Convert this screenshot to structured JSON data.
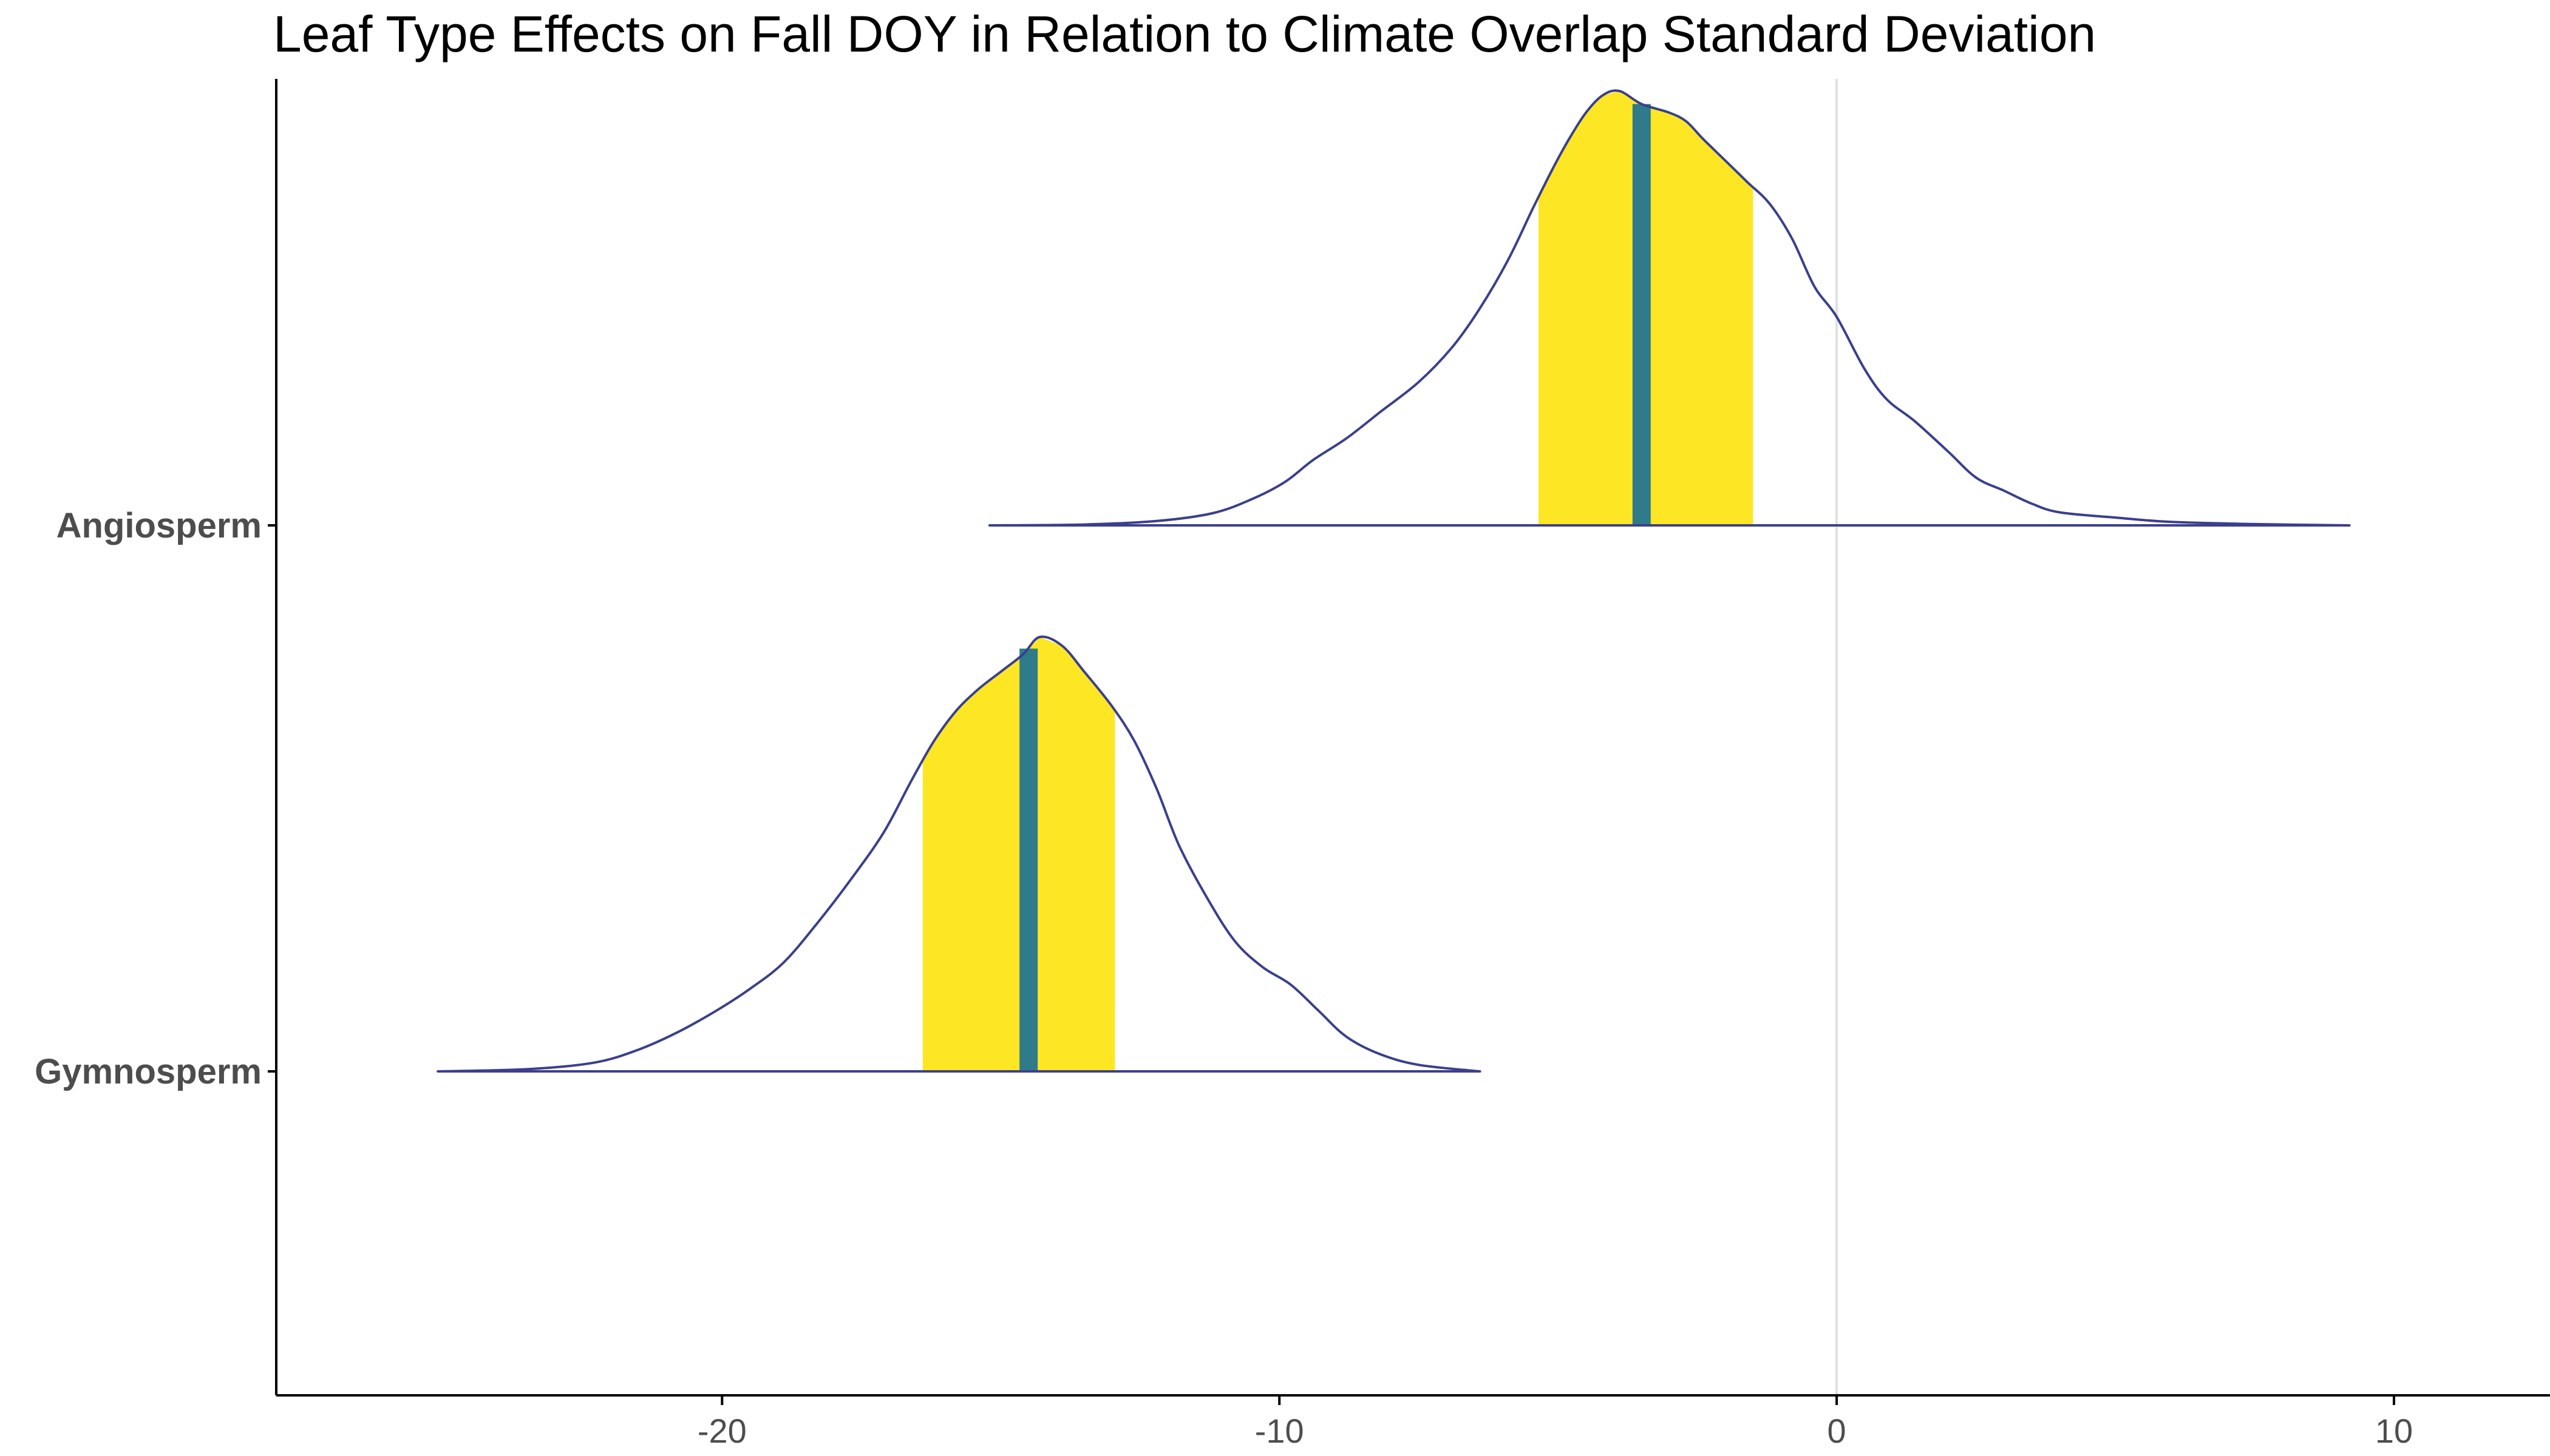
{
  "chart_data": {
    "type": "ridgeline",
    "title": "Leaf Type Effects on Fall DOY in Relation to Climate Overlap Standard Deviation",
    "xlabel": "",
    "ylabel": "",
    "xlim": [
      -28,
      12.8
    ],
    "x_ticks": [
      -20,
      -10,
      0,
      10
    ],
    "x_tick_labels": [
      "-20",
      "-10",
      "0",
      "10"
    ],
    "reference_line_x": 0,
    "grid": false,
    "categories": [
      "Angiosperm",
      "Gymnosperm"
    ],
    "series": [
      {
        "name": "Angiosperm",
        "median": -3.5,
        "interval": [
          -5.35,
          -1.5
        ],
        "density_x": [
          -15.2,
          -13.5,
          -12.2,
          -11.2,
          -10.5,
          -9.9,
          -9.4,
          -8.8,
          -8.2,
          -7.5,
          -6.9,
          -6.4,
          -5.9,
          -5.45,
          -5.1,
          -4.8,
          -4.5,
          -4.2,
          -3.9,
          -3.5,
          -3.0,
          -2.7,
          -2.4,
          -2.0,
          -1.6,
          -1.2,
          -0.8,
          -0.4,
          0,
          0.5,
          0.9,
          1.4,
          2.0,
          2.5,
          3.0,
          3.5,
          4.0,
          5.0,
          6.0,
          7.5,
          9.2
        ],
        "density_y": [
          0.0,
          0.002,
          0.01,
          0.028,
          0.06,
          0.1,
          0.15,
          0.2,
          0.26,
          0.33,
          0.41,
          0.5,
          0.61,
          0.73,
          0.82,
          0.89,
          0.95,
          0.99,
          1.0,
          0.97,
          0.95,
          0.93,
          0.89,
          0.84,
          0.79,
          0.74,
          0.66,
          0.55,
          0.48,
          0.36,
          0.29,
          0.24,
          0.17,
          0.11,
          0.08,
          0.05,
          0.03,
          0.018,
          0.008,
          0.003,
          0.0
        ]
      },
      {
        "name": "Gymnosperm",
        "median": -14.5,
        "interval": [
          -16.4,
          -12.95
        ],
        "density_x": [
          -25.1,
          -23.5,
          -22.3,
          -21.5,
          -20.8,
          -20.1,
          -19.5,
          -18.9,
          -18.3,
          -17.7,
          -17.1,
          -16.6,
          -16.2,
          -15.8,
          -15.4,
          -15.0,
          -14.6,
          -14.3,
          -13.9,
          -13.5,
          -13.0,
          -12.6,
          -12.2,
          -11.8,
          -11.3,
          -10.8,
          -10.3,
          -9.8,
          -9.3,
          -8.8,
          -8.2,
          -7.5,
          -6.4
        ],
        "density_y": [
          0.0,
          0.005,
          0.02,
          0.05,
          0.09,
          0.14,
          0.19,
          0.25,
          0.34,
          0.44,
          0.55,
          0.67,
          0.76,
          0.83,
          0.88,
          0.92,
          0.96,
          1.0,
          0.98,
          0.92,
          0.84,
          0.76,
          0.65,
          0.52,
          0.4,
          0.3,
          0.24,
          0.2,
          0.14,
          0.08,
          0.04,
          0.015,
          0.0
        ]
      }
    ],
    "colors": {
      "interval_fill": "#fde725",
      "median_line": "#2f7b8a",
      "density_line": "#3b3f8c",
      "reference_line": "#e0e0e0",
      "axis": "#000000"
    }
  }
}
